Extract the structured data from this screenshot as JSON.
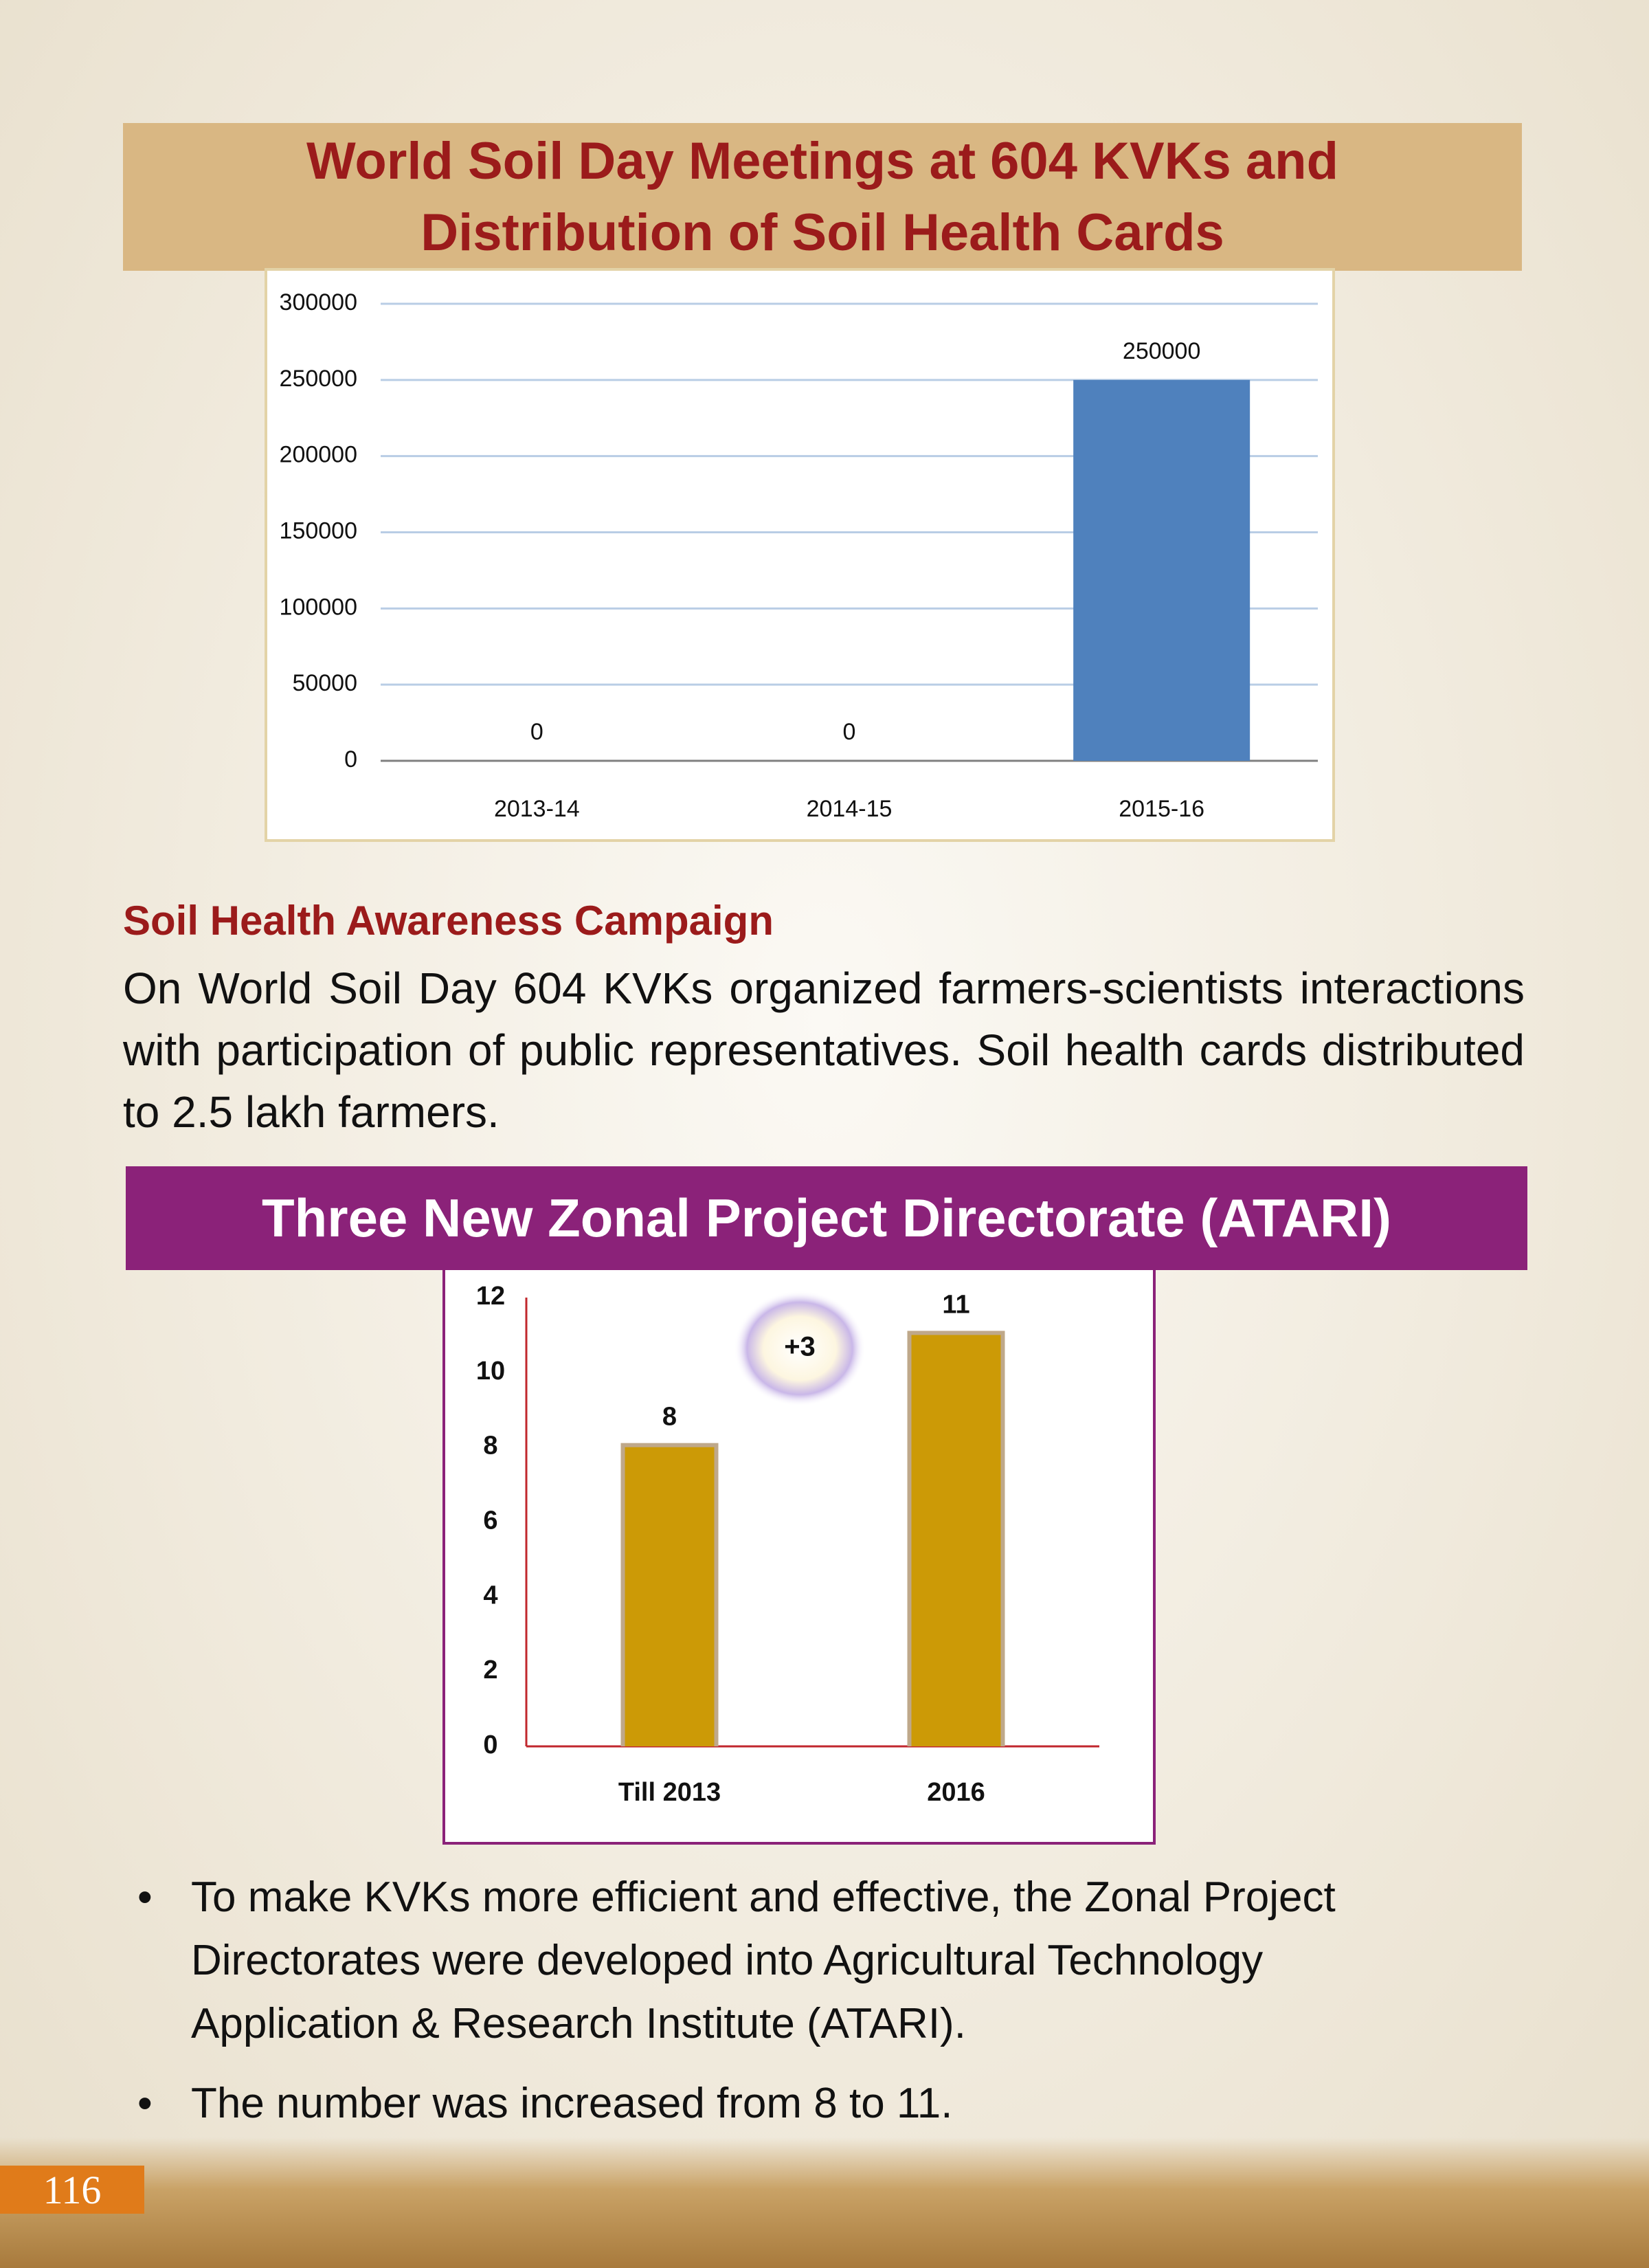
{
  "chart_data": [
    {
      "type": "bar",
      "title": "World Soil Day Meetings at 604 KVKs and Distribution of Soil Health Cards",
      "categories": [
        "2013-14",
        "2014-15",
        "2015-16"
      ],
      "values": [
        0,
        0,
        250000
      ],
      "color": "#4f81bd",
      "ylim": [
        0,
        300000
      ],
      "yticks": [
        0,
        50000,
        100000,
        150000,
        200000,
        250000,
        300000
      ],
      "grid": true
    },
    {
      "type": "bar",
      "title": "Three New Zonal Project Directorate (ATARI)",
      "categories": [
        "Till 2013",
        "2016"
      ],
      "values": [
        8,
        11
      ],
      "color": "#cc9a06",
      "ylim": [
        0,
        12
      ],
      "yticks": [
        0,
        2,
        4,
        6,
        8,
        10,
        12
      ],
      "grid": false,
      "annotation": "+3"
    }
  ],
  "section": {
    "heading": "Soil Health Awareness Campaign",
    "text": "On World Soil Day 604 KVKs organized farmers-scientists interactions with participation of public representatives. Soil health cards distributed to 2.5 lakh farmers."
  },
  "bullets": [
    "To make KVKs more efficient and  effective, the Zonal Project Directorates were developed into Agricultural Technology Application & Research Institute  (ATARI).",
    "The number was increased from 8 to 11."
  ],
  "page_number": "116"
}
